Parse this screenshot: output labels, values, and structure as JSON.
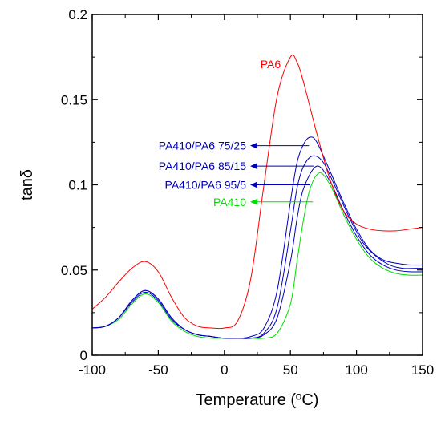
{
  "chart_data": {
    "type": "line",
    "title": "",
    "xlabel": "Temperature (ºC)",
    "ylabel": "tanδ",
    "xlim": [
      -100,
      150
    ],
    "ylim": [
      0,
      0.2
    ],
    "xticks": [
      -100,
      -50,
      0,
      50,
      100,
      150
    ],
    "xtick_labels": [
      "-100",
      "-50",
      "0",
      "50",
      "100",
      "150"
    ],
    "yticks": [
      0,
      0.05,
      0.1,
      0.15,
      0.2
    ],
    "ytick_labels": [
      "0",
      "0.05",
      "0.1",
      "0.15",
      "0.2"
    ],
    "grid": false,
    "legend": "none",
    "series": [
      {
        "name": "PA6",
        "color": "#ff0000",
        "x": [
          -100,
          -90,
          -80,
          -70,
          -60,
          -50,
          -40,
          -30,
          -20,
          -10,
          0,
          10,
          20,
          30,
          40,
          50,
          55,
          60,
          70,
          80,
          90,
          100,
          110,
          120,
          130,
          140,
          150
        ],
        "y": [
          0.027,
          0.034,
          0.043,
          0.051,
          0.055,
          0.049,
          0.034,
          0.022,
          0.017,
          0.016,
          0.016,
          0.02,
          0.045,
          0.1,
          0.152,
          0.175,
          0.172,
          0.16,
          0.13,
          0.103,
          0.085,
          0.077,
          0.074,
          0.073,
          0.073,
          0.074,
          0.075
        ]
      },
      {
        "name": "PA410/PA6 75/25",
        "color": "#0000bb",
        "x": [
          -100,
          -90,
          -80,
          -70,
          -60,
          -50,
          -40,
          -30,
          -20,
          -10,
          0,
          10,
          20,
          30,
          40,
          50,
          55,
          60,
          65,
          70,
          80,
          90,
          100,
          110,
          120,
          130,
          140,
          150
        ],
        "y": [
          0.016,
          0.017,
          0.022,
          0.032,
          0.038,
          0.033,
          0.022,
          0.015,
          0.012,
          0.011,
          0.01,
          0.01,
          0.011,
          0.016,
          0.038,
          0.09,
          0.113,
          0.124,
          0.128,
          0.125,
          0.108,
          0.09,
          0.074,
          0.062,
          0.056,
          0.054,
          0.053,
          0.053
        ]
      },
      {
        "name": "PA410/PA6 85/15",
        "color": "#0000bb",
        "x": [
          -100,
          -90,
          -80,
          -70,
          -60,
          -50,
          -40,
          -30,
          -20,
          -10,
          0,
          10,
          20,
          30,
          40,
          50,
          55,
          60,
          67,
          75,
          85,
          95,
          105,
          115,
          125,
          135,
          145,
          150
        ],
        "y": [
          0.016,
          0.017,
          0.022,
          0.032,
          0.038,
          0.033,
          0.022,
          0.015,
          0.012,
          0.011,
          0.01,
          0.01,
          0.01,
          0.013,
          0.028,
          0.073,
          0.098,
          0.111,
          0.117,
          0.113,
          0.097,
          0.08,
          0.066,
          0.058,
          0.053,
          0.051,
          0.051,
          0.051
        ]
      },
      {
        "name": "PA410/PA6 95/5",
        "color": "#0000bb",
        "x": [
          -100,
          -90,
          -80,
          -70,
          -60,
          -50,
          -40,
          -30,
          -20,
          -10,
          0,
          10,
          20,
          30,
          40,
          50,
          55,
          60,
          70,
          80,
          90,
          100,
          110,
          120,
          130,
          140,
          150
        ],
        "y": [
          0.016,
          0.017,
          0.022,
          0.031,
          0.037,
          0.032,
          0.021,
          0.015,
          0.012,
          0.011,
          0.01,
          0.01,
          0.01,
          0.012,
          0.022,
          0.055,
          0.08,
          0.098,
          0.111,
          0.102,
          0.085,
          0.07,
          0.059,
          0.053,
          0.05,
          0.049,
          0.049
        ]
      },
      {
        "name": "PA410",
        "color": "#00dd00",
        "x": [
          -100,
          -90,
          -80,
          -70,
          -60,
          -50,
          -40,
          -30,
          -20,
          -10,
          0,
          10,
          20,
          30,
          40,
          50,
          55,
          60,
          65,
          72,
          80,
          90,
          100,
          110,
          120,
          130,
          140,
          150
        ],
        "y": [
          0.016,
          0.017,
          0.021,
          0.03,
          0.036,
          0.031,
          0.02,
          0.014,
          0.011,
          0.01,
          0.01,
          0.01,
          0.01,
          0.01,
          0.013,
          0.03,
          0.055,
          0.08,
          0.098,
          0.107,
          0.1,
          0.083,
          0.068,
          0.057,
          0.051,
          0.048,
          0.047,
          0.047
        ]
      }
    ],
    "annotations": [
      {
        "text": "PA6",
        "series": 0,
        "color": "#ff0000"
      },
      {
        "text": "PA410/PA6 75/25",
        "series": 1,
        "color": "#0000bb",
        "arrow_y": 0.123,
        "arrow_to_x": 64
      },
      {
        "text": "PA410/PA6 85/15",
        "series": 2,
        "color": "#0000bb",
        "arrow_y": 0.111,
        "arrow_to_x": 68
      },
      {
        "text": "PA410/PA6 95/5",
        "series": 3,
        "color": "#0000bb",
        "arrow_y": 0.1,
        "arrow_to_x": 65
      },
      {
        "text": "PA410",
        "series": 4,
        "color": "#00dd00",
        "arrow_y": 0.09,
        "arrow_to_x": 67
      }
    ]
  }
}
